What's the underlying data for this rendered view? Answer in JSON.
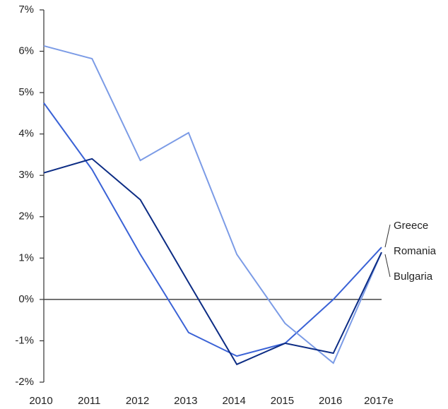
{
  "chart_data": {
    "type": "line",
    "categories": [
      "2010",
      "2011",
      "2012",
      "2013",
      "2014",
      "2015",
      "2016",
      "2017e"
    ],
    "series": [
      {
        "name": "Greece",
        "color": "#3a62d6",
        "values": [
          4.75,
          3.14,
          1.09,
          -0.8,
          -1.37,
          -1.06,
          0.0,
          1.26
        ]
      },
      {
        "name": "Romania",
        "color": "#7b9be6",
        "values": [
          6.13,
          5.82,
          3.36,
          4.03,
          1.09,
          -0.58,
          -1.54,
          1.14
        ]
      },
      {
        "name": "Bulgaria",
        "color": "#0c2c84",
        "values": [
          3.06,
          3.4,
          2.41,
          0.41,
          -1.57,
          -1.06,
          -1.3,
          1.14
        ]
      }
    ],
    "ylim": [
      -2,
      7
    ],
    "yticks": [
      {
        "value": -2,
        "label": "-2%"
      },
      {
        "value": -1,
        "label": "-1%"
      },
      {
        "value": 0,
        "label": "0%"
      },
      {
        "value": 1,
        "label": "1%"
      },
      {
        "value": 2,
        "label": "2%"
      },
      {
        "value": 3,
        "label": "3%"
      },
      {
        "value": 4,
        "label": "4%"
      },
      {
        "value": 5,
        "label": "5%"
      },
      {
        "value": 6,
        "label": "6%"
      },
      {
        "value": 7,
        "label": "7%"
      }
    ]
  }
}
